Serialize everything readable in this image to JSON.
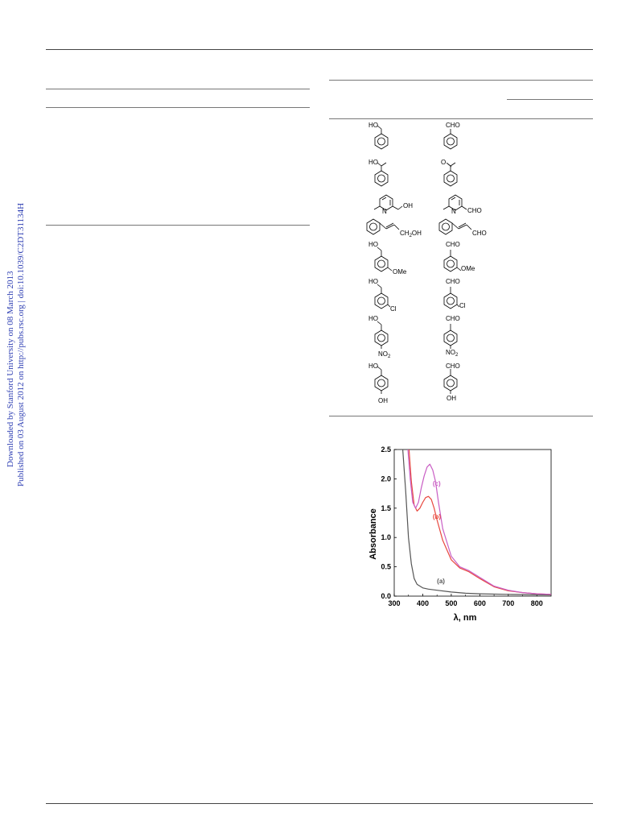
{
  "watermark": {
    "line1": "Downloaded by Stanford University on 08 March 2013",
    "line2": "Published on 03 August 2012 on http://pubs.rsc.org | doi:10.1039/C2DT31134H",
    "color": "#2e3fb3"
  },
  "molecules": {
    "r1": {
      "left_sub": "HO",
      "right_sub": "CHO"
    },
    "r2": {
      "left_sub": "HO",
      "right_sub": "O"
    },
    "r3": {
      "left_n": "N",
      "left_sub": "OH",
      "right_n": "N",
      "right_sub": "CHO"
    },
    "r4": {
      "left_sub": "CH",
      "left_sub_2": "2",
      "left_sub_3": "OH",
      "right_sub": "CHO"
    },
    "r5": {
      "left_top": "HO",
      "left_sub": "OMe",
      "right_top": "CHO",
      "right_sub": "OMe"
    },
    "r6": {
      "left_top": "HO",
      "left_sub": "Cl",
      "right_top": "CHO",
      "right_sub": "Cl"
    },
    "r7": {
      "left_top": "HO",
      "left_sub": "NO",
      "left_sub_2": "2",
      "right_top": "CHO",
      "right_sub": "NO",
      "right_sub_2": "2"
    },
    "r8": {
      "left_top": "HO",
      "left_sub": "OH",
      "right_top": "CHO",
      "right_sub": "OH"
    }
  },
  "chart_data": {
    "type": "line",
    "xlabel": "λ, nm",
    "ylabel": "Absorbance",
    "xlim": [
      300,
      850
    ],
    "ylim": [
      0,
      2.5
    ],
    "xticks": [
      300,
      400,
      500,
      600,
      700,
      800
    ],
    "yticks": [
      0.0,
      0.5,
      1.0,
      1.5,
      2.0,
      2.5
    ],
    "series": [
      {
        "name": "(a)",
        "color": "#555555",
        "x": [
          330,
          340,
          350,
          360,
          370,
          380,
          400,
          420,
          450,
          500,
          550,
          600,
          700,
          850
        ],
        "y": [
          2.5,
          1.8,
          1.0,
          0.55,
          0.3,
          0.2,
          0.14,
          0.12,
          0.1,
          0.07,
          0.05,
          0.04,
          0.03,
          0.02
        ]
      },
      {
        "name": "(b)",
        "color": "#e8483f",
        "x": [
          352,
          360,
          370,
          380,
          390,
          400,
          410,
          420,
          430,
          440,
          450,
          470,
          500,
          530,
          560,
          600,
          650,
          700,
          750,
          800,
          850
        ],
        "y": [
          2.5,
          1.95,
          1.55,
          1.45,
          1.5,
          1.6,
          1.68,
          1.7,
          1.65,
          1.5,
          1.3,
          0.95,
          0.62,
          0.48,
          0.42,
          0.3,
          0.16,
          0.09,
          0.06,
          0.04,
          0.03
        ]
      },
      {
        "name": "(c)",
        "color": "#c95ec4",
        "x": [
          348,
          356,
          365,
          375,
          385,
          395,
          405,
          415,
          425,
          435,
          445,
          455,
          470,
          500,
          530,
          560,
          600,
          650,
          700,
          750,
          800,
          850
        ],
        "y": [
          2.5,
          2.0,
          1.6,
          1.5,
          1.6,
          1.85,
          2.05,
          2.2,
          2.25,
          2.15,
          1.95,
          1.6,
          1.15,
          0.68,
          0.5,
          0.44,
          0.32,
          0.17,
          0.1,
          0.06,
          0.04,
          0.03
        ]
      }
    ]
  }
}
